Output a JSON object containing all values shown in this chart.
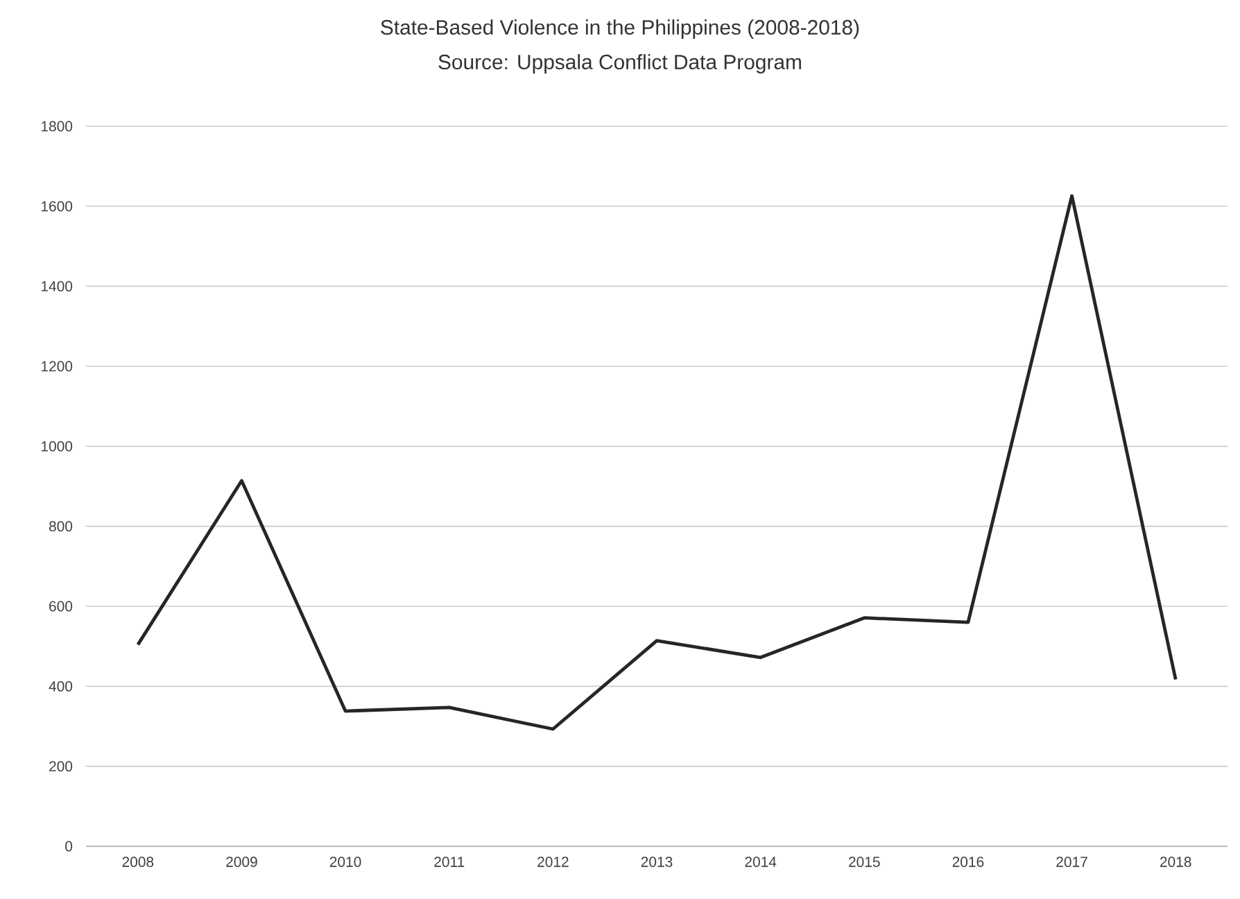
{
  "chart_data": {
    "type": "line",
    "title": "State-Based Violence in the Philippines (2008-2018)",
    "subtitle": "Source: Uppsala Conflict Data Program",
    "categories": [
      "2008",
      "2009",
      "2010",
      "2011",
      "2012",
      "2013",
      "2014",
      "2015",
      "2016",
      "2017",
      "2018"
    ],
    "values": [
      504,
      914,
      338,
      347,
      293,
      514,
      472,
      571,
      560,
      1626,
      417
    ],
    "color": "#262626",
    "ylim": [
      0,
      1800
    ],
    "yticks": [
      0,
      200,
      400,
      600,
      800,
      1000,
      1200,
      1400,
      1600,
      1800
    ],
    "grid": "y"
  }
}
